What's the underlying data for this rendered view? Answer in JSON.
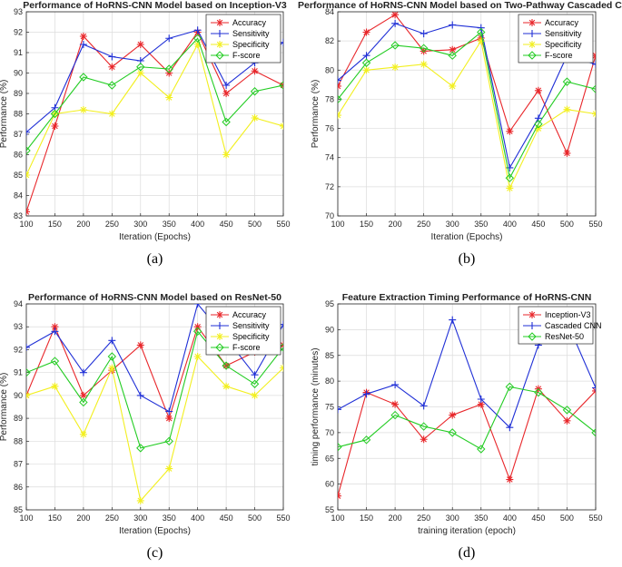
{
  "chart_data": [
    {
      "type": "line",
      "panel_label": "(a)",
      "title": "Performance of HoRNS-CNN Model based on Inception-V3",
      "xlabel": "Iteration (Epochs)",
      "ylabel": "Performance (%)",
      "x": [
        100,
        150,
        200,
        250,
        300,
        350,
        400,
        450,
        500,
        550
      ],
      "xticks": [
        100,
        150,
        200,
        250,
        300,
        350,
        400,
        450,
        500,
        550
      ],
      "ylim": [
        83,
        93
      ],
      "yticks": [
        83,
        84,
        85,
        86,
        87,
        88,
        89,
        90,
        91,
        92,
        93
      ],
      "grid": true,
      "legend_position": "top-right",
      "series": [
        {
          "name": "Accuracy",
          "color": "#e8262a",
          "marker": "star",
          "values": [
            83.2,
            87.4,
            91.8,
            90.3,
            91.4,
            90.0,
            92.0,
            89.0,
            90.1,
            89.4
          ]
        },
        {
          "name": "Sensitivity",
          "color": "#1f2fd6",
          "marker": "plus",
          "values": [
            87.1,
            88.3,
            91.4,
            90.8,
            90.6,
            91.7,
            92.1,
            89.4,
            90.5,
            91.5
          ]
        },
        {
          "name": "Specificity",
          "color": "#f2ef1f",
          "marker": "star",
          "values": [
            85.0,
            88.0,
            88.2,
            88.0,
            90.0,
            88.8,
            91.4,
            86.0,
            87.8,
            87.4
          ]
        },
        {
          "name": "F-score",
          "color": "#22cc22",
          "marker": "diamond",
          "values": [
            86.2,
            88.0,
            89.8,
            89.4,
            90.3,
            90.2,
            91.7,
            87.6,
            89.1,
            89.4
          ]
        }
      ]
    },
    {
      "type": "line",
      "panel_label": "(b)",
      "title": "Performance of HoRNS-CNN Model based on Two-Pathway Cascaded CNN",
      "xlabel": "Iteration (Epochs)",
      "ylabel": "Performance (%)",
      "x": [
        100,
        150,
        200,
        250,
        300,
        350,
        400,
        450,
        500,
        550
      ],
      "xticks": [
        100,
        150,
        200,
        250,
        300,
        350,
        400,
        450,
        500,
        550
      ],
      "ylim": [
        70,
        84
      ],
      "yticks": [
        70,
        72,
        74,
        76,
        78,
        80,
        82,
        84
      ],
      "grid": true,
      "legend_position": "top-right",
      "series": [
        {
          "name": "Accuracy",
          "color": "#e8262a",
          "marker": "star",
          "values": [
            78.9,
            82.6,
            83.8,
            81.3,
            81.4,
            82.2,
            75.8,
            78.6,
            74.3,
            81.0
          ]
        },
        {
          "name": "Sensitivity",
          "color": "#1f2fd6",
          "marker": "plus",
          "values": [
            79.3,
            81.0,
            83.2,
            82.5,
            83.1,
            82.9,
            73.3,
            76.7,
            81.0,
            80.4
          ]
        },
        {
          "name": "Specificity",
          "color": "#f2ef1f",
          "marker": "star",
          "values": [
            76.9,
            80.0,
            80.2,
            80.4,
            78.9,
            82.0,
            71.9,
            76.0,
            77.3,
            77.0
          ]
        },
        {
          "name": "F-score",
          "color": "#22cc22",
          "marker": "diamond",
          "values": [
            78.0,
            80.5,
            81.7,
            81.5,
            81.0,
            82.6,
            72.6,
            76.3,
            79.2,
            78.7
          ]
        }
      ]
    },
    {
      "type": "line",
      "panel_label": "(c)",
      "title": "Performance of HoRNS-CNN Model based on ResNet-50",
      "xlabel": "Iteration (Epochs)",
      "ylabel": "Performance (%)",
      "x": [
        100,
        150,
        200,
        250,
        300,
        350,
        400,
        450,
        500,
        550
      ],
      "xticks": [
        100,
        150,
        200,
        250,
        300,
        350,
        400,
        450,
        500,
        550
      ],
      "ylim": [
        85,
        94
      ],
      "yticks": [
        85,
        86,
        87,
        88,
        89,
        90,
        91,
        92,
        93,
        94
      ],
      "grid": true,
      "legend_position": "top-right",
      "series": [
        {
          "name": "Accuracy",
          "color": "#e8262a",
          "marker": "star",
          "values": [
            90.0,
            93.0,
            90.0,
            91.1,
            92.2,
            89.0,
            93.0,
            91.3,
            91.9,
            92.2
          ]
        },
        {
          "name": "Sensitivity",
          "color": "#1f2fd6",
          "marker": "plus",
          "values": [
            92.1,
            92.8,
            91.0,
            92.4,
            90.0,
            89.3,
            94.0,
            92.5,
            90.9,
            93.1
          ]
        },
        {
          "name": "Specificity",
          "color": "#f2ef1f",
          "marker": "star",
          "values": [
            90.0,
            90.4,
            88.3,
            91.2,
            85.4,
            86.8,
            91.7,
            90.4,
            90.0,
            91.2
          ]
        },
        {
          "name": "F-score",
          "color": "#22cc22",
          "marker": "diamond",
          "values": [
            91.0,
            91.5,
            89.7,
            91.7,
            87.7,
            88.0,
            92.8,
            91.3,
            90.5,
            92.1
          ]
        }
      ]
    },
    {
      "type": "line",
      "panel_label": "(d)",
      "title": "Feature Extraction Timing Performance of HoRNS-CNN",
      "xlabel": "training iteration (epoch)",
      "ylabel": "timing performance (minutes)",
      "x": [
        100,
        150,
        200,
        250,
        300,
        350,
        400,
        450,
        500,
        550
      ],
      "xticks": [
        100,
        150,
        200,
        250,
        300,
        350,
        400,
        450,
        500,
        550
      ],
      "ylim": [
        55,
        95
      ],
      "yticks": [
        55,
        60,
        65,
        70,
        75,
        80,
        85,
        90,
        95
      ],
      "grid": true,
      "legend_position": "top-right",
      "series": [
        {
          "name": "Inception-V3",
          "color": "#e8262a",
          "marker": "star",
          "values": [
            57.7,
            77.8,
            75.5,
            68.7,
            73.4,
            75.5,
            60.9,
            78.5,
            72.3,
            78.1
          ]
        },
        {
          "name": "Cascaded CNN",
          "color": "#1f2fd6",
          "marker": "plus",
          "values": [
            74.5,
            77.5,
            79.3,
            75.2,
            91.9,
            76.5,
            71.0,
            87.0,
            91.5,
            78.7
          ]
        },
        {
          "name": "ResNet-50",
          "color": "#22cc22",
          "marker": "diamond",
          "values": [
            67.2,
            68.6,
            73.4,
            71.2,
            70.0,
            66.8,
            78.9,
            77.8,
            74.4,
            70.0
          ]
        }
      ]
    }
  ]
}
